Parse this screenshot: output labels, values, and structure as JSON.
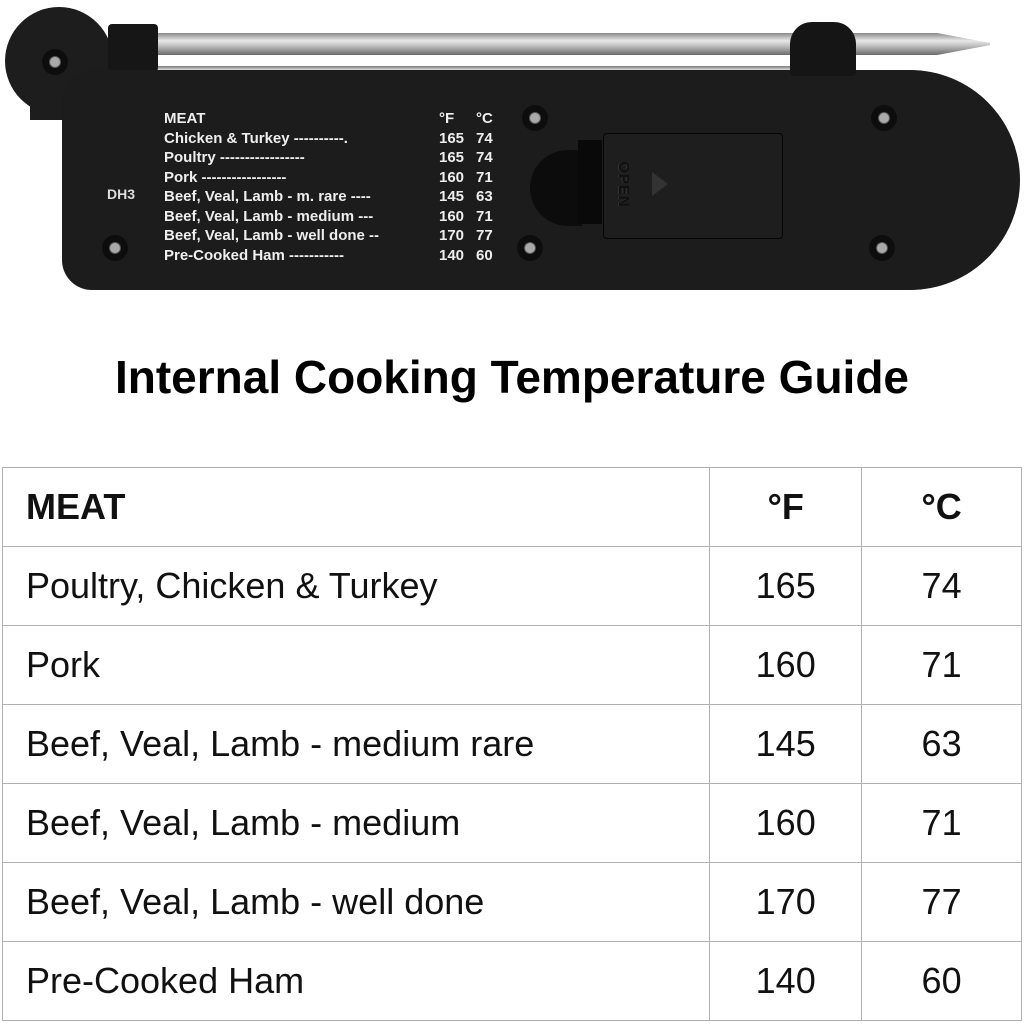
{
  "device": {
    "model": "DH3",
    "door_label": "OPEN",
    "header": {
      "meat": "MEAT",
      "f": "°F",
      "c": "°C"
    },
    "rows": [
      {
        "meat": "Chicken & Turkey ----------.",
        "f": "165",
        "c": "74"
      },
      {
        "meat": "Poultry -----------------",
        "f": "165",
        "c": "74"
      },
      {
        "meat": "Pork ----------------- ",
        "f": "160",
        "c": "71"
      },
      {
        "meat": "Beef, Veal, Lamb - m. rare ---- ",
        "f": "145",
        "c": "63"
      },
      {
        "meat": "Beef, Veal, Lamb - medium --- ",
        "f": "160",
        "c": "71"
      },
      {
        "meat": "Beef, Veal, Lamb - well done -- ",
        "f": "170",
        "c": "77"
      },
      {
        "meat": "Pre-Cooked Ham ----------- ",
        "f": "140",
        "c": "60"
      }
    ]
  },
  "title": "Internal Cooking Temperature Guide",
  "table": {
    "headers": {
      "meat": "MEAT",
      "f": "°F",
      "c": "°C"
    },
    "rows": [
      {
        "meat": "Poultry, Chicken & Turkey",
        "f": "165",
        "c": "74"
      },
      {
        "meat": "Pork",
        "f": "160",
        "c": "71"
      },
      {
        "meat": "Beef, Veal, Lamb - medium rare",
        "f": "145",
        "c": "63"
      },
      {
        "meat": "Beef, Veal, Lamb - medium",
        "f": "160",
        "c": "71"
      },
      {
        "meat": "Beef, Veal, Lamb - well done",
        "f": "170",
        "c": "77"
      },
      {
        "meat": "Pre-Cooked Ham",
        "f": "140",
        "c": "60"
      }
    ]
  }
}
